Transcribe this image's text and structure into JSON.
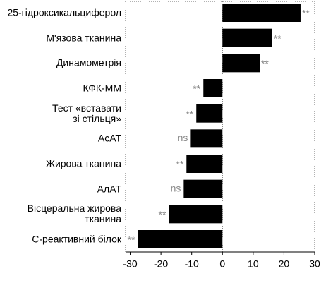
{
  "chart_data": {
    "type": "bar",
    "orientation": "horizontal",
    "categories": [
      "25-гідроксикальциферол",
      "М'язова тканина",
      "Динамометрія",
      "КФК-ММ",
      "Тест «вставати\nзі стільця»",
      "АсАТ",
      "Жирова тканина",
      "АлАТ",
      "Вісцеральна жирова\nтканина",
      "С-реактивний білок"
    ],
    "values": [
      25.4,
      16.2,
      12.1,
      -6.2,
      -8.5,
      -10.3,
      -11.7,
      -12.6,
      -17.4,
      -27.5
    ],
    "annotations": [
      "**",
      "**",
      "**",
      "**",
      "**",
      "ns",
      "**",
      "ns",
      "**",
      "**"
    ],
    "color": "#000000",
    "annotation_color": "#888888",
    "xlim": [
      -31.5,
      30
    ],
    "xticks": [
      -30,
      -20,
      -10,
      0,
      10,
      20,
      30
    ]
  }
}
